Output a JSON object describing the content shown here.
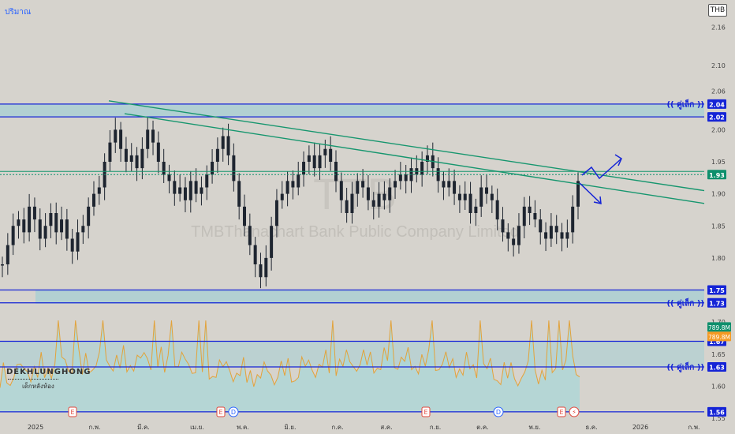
{
  "header": {
    "volume_label": "ปริมาณ",
    "currency": "THB"
  },
  "watermark": {
    "symbol": "TTB",
    "name": "TMBThanachart Bank Public Company Limited"
  },
  "brand": {
    "name": "DEKHLUNGHONG",
    "tagline": "เด็กหลังห้อง"
  },
  "annotations": {
    "small_pair_label": "(( คู่เล็ก ))"
  },
  "colors": {
    "background": "#d6d3cd",
    "candle": "#1e2530",
    "level_line": "#1524d6",
    "trend_line": "#16966e",
    "zone": "#a9d0d3",
    "volume_line": "#e3a23a",
    "volume_fill": "#a9d7d7",
    "badge_blue": "#1524d6",
    "badge_green": "#0e8f6c",
    "badge_orange": "#f59a23"
  },
  "chart_data": {
    "type": "candlestick",
    "y_axis": {
      "range": [
        1.55,
        2.19
      ],
      "ticks": [
        "2.16",
        "2.10",
        "2.06",
        "2.00",
        "1.95",
        "1.90",
        "1.85",
        "1.80",
        "1.75",
        "1.70",
        "1.65",
        "1.60",
        "1.55"
      ]
    },
    "x_axis": {
      "ticks": [
        "2025",
        "ก.พ.",
        "มี.ค.",
        "เม.ย.",
        "พ.ค.",
        "มิ.ย.",
        "ก.ค.",
        "ส.ค.",
        "ก.ย.",
        "ต.ค.",
        "พ.ย.",
        "ธ.ค.",
        "2026",
        "ก.พ."
      ]
    },
    "close_profile": [
      1.79,
      1.82,
      1.85,
      1.86,
      1.84,
      1.88,
      1.86,
      1.83,
      1.85,
      1.87,
      1.84,
      1.86,
      1.83,
      1.81,
      1.84,
      1.85,
      1.88,
      1.9,
      1.91,
      1.95,
      1.98,
      2.0,
      1.97,
      1.95,
      1.96,
      1.94,
      1.97,
      2.0,
      1.98,
      1.95,
      1.93,
      1.92,
      1.9,
      1.91,
      1.89,
      1.92,
      1.9,
      1.91,
      1.93,
      1.95,
      1.97,
      1.99,
      1.96,
      1.92,
      1.88,
      1.85,
      1.82,
      1.79,
      1.77,
      1.8,
      1.85,
      1.89,
      1.9,
      1.92,
      1.91,
      1.93,
      1.95,
      1.96,
      1.94,
      1.96,
      1.97,
      1.95,
      1.92,
      1.89,
      1.87,
      1.9,
      1.92,
      1.91,
      1.89,
      1.88,
      1.9,
      1.89,
      1.91,
      1.92,
      1.93,
      1.92,
      1.94,
      1.93,
      1.95,
      1.96,
      1.94,
      1.92,
      1.91,
      1.92,
      1.9,
      1.89,
      1.9,
      1.87,
      1.88,
      1.91,
      1.9,
      1.89,
      1.86,
      1.84,
      1.83,
      1.82,
      1.85,
      1.88,
      1.87,
      1.86,
      1.84,
      1.83,
      1.85,
      1.84,
      1.83,
      1.84,
      1.88,
      1.92
    ],
    "levels": [
      {
        "price": 2.04,
        "label": "2.04",
        "note": "(( คู่เล็ก ))",
        "color": "#1524d6"
      },
      {
        "price": 2.02,
        "label": "2.02",
        "color": "#1524d6"
      },
      {
        "price": 1.93,
        "label": "1.93",
        "color": "#0e8f6c"
      },
      {
        "price": 1.75,
        "label": "1.75",
        "color": "#1524d6"
      },
      {
        "price": 1.73,
        "label": "1.73",
        "note": "(( คู่เล็ก ))",
        "color": "#1524d6"
      },
      {
        "price": 1.67,
        "label": "1.67",
        "color": "#1524d6"
      },
      {
        "price": 1.63,
        "label": "1.63",
        "note": "(( คู่เล็ก ))",
        "color": "#1524d6"
      },
      {
        "price": 1.56,
        "label": "1.56",
        "color": "#1524d6"
      }
    ],
    "volume_badges": [
      {
        "label": "789.8M",
        "color": "#0e8f6c"
      },
      {
        "label": "789.8M",
        "color": "#f59a23"
      }
    ],
    "events": [
      {
        "type": "E",
        "x_label": "ก.พ."
      },
      {
        "type": "E",
        "x_label": "พ.ค."
      },
      {
        "type": "D",
        "x_label": "พ.ค."
      },
      {
        "type": "E",
        "x_label": "ส.ค."
      },
      {
        "type": "D",
        "x_label": "ต.ค."
      },
      {
        "type": "E",
        "x_label": "พ.ย."
      },
      {
        "type": "⚡",
        "x_label": "พ.ย."
      }
    ]
  }
}
